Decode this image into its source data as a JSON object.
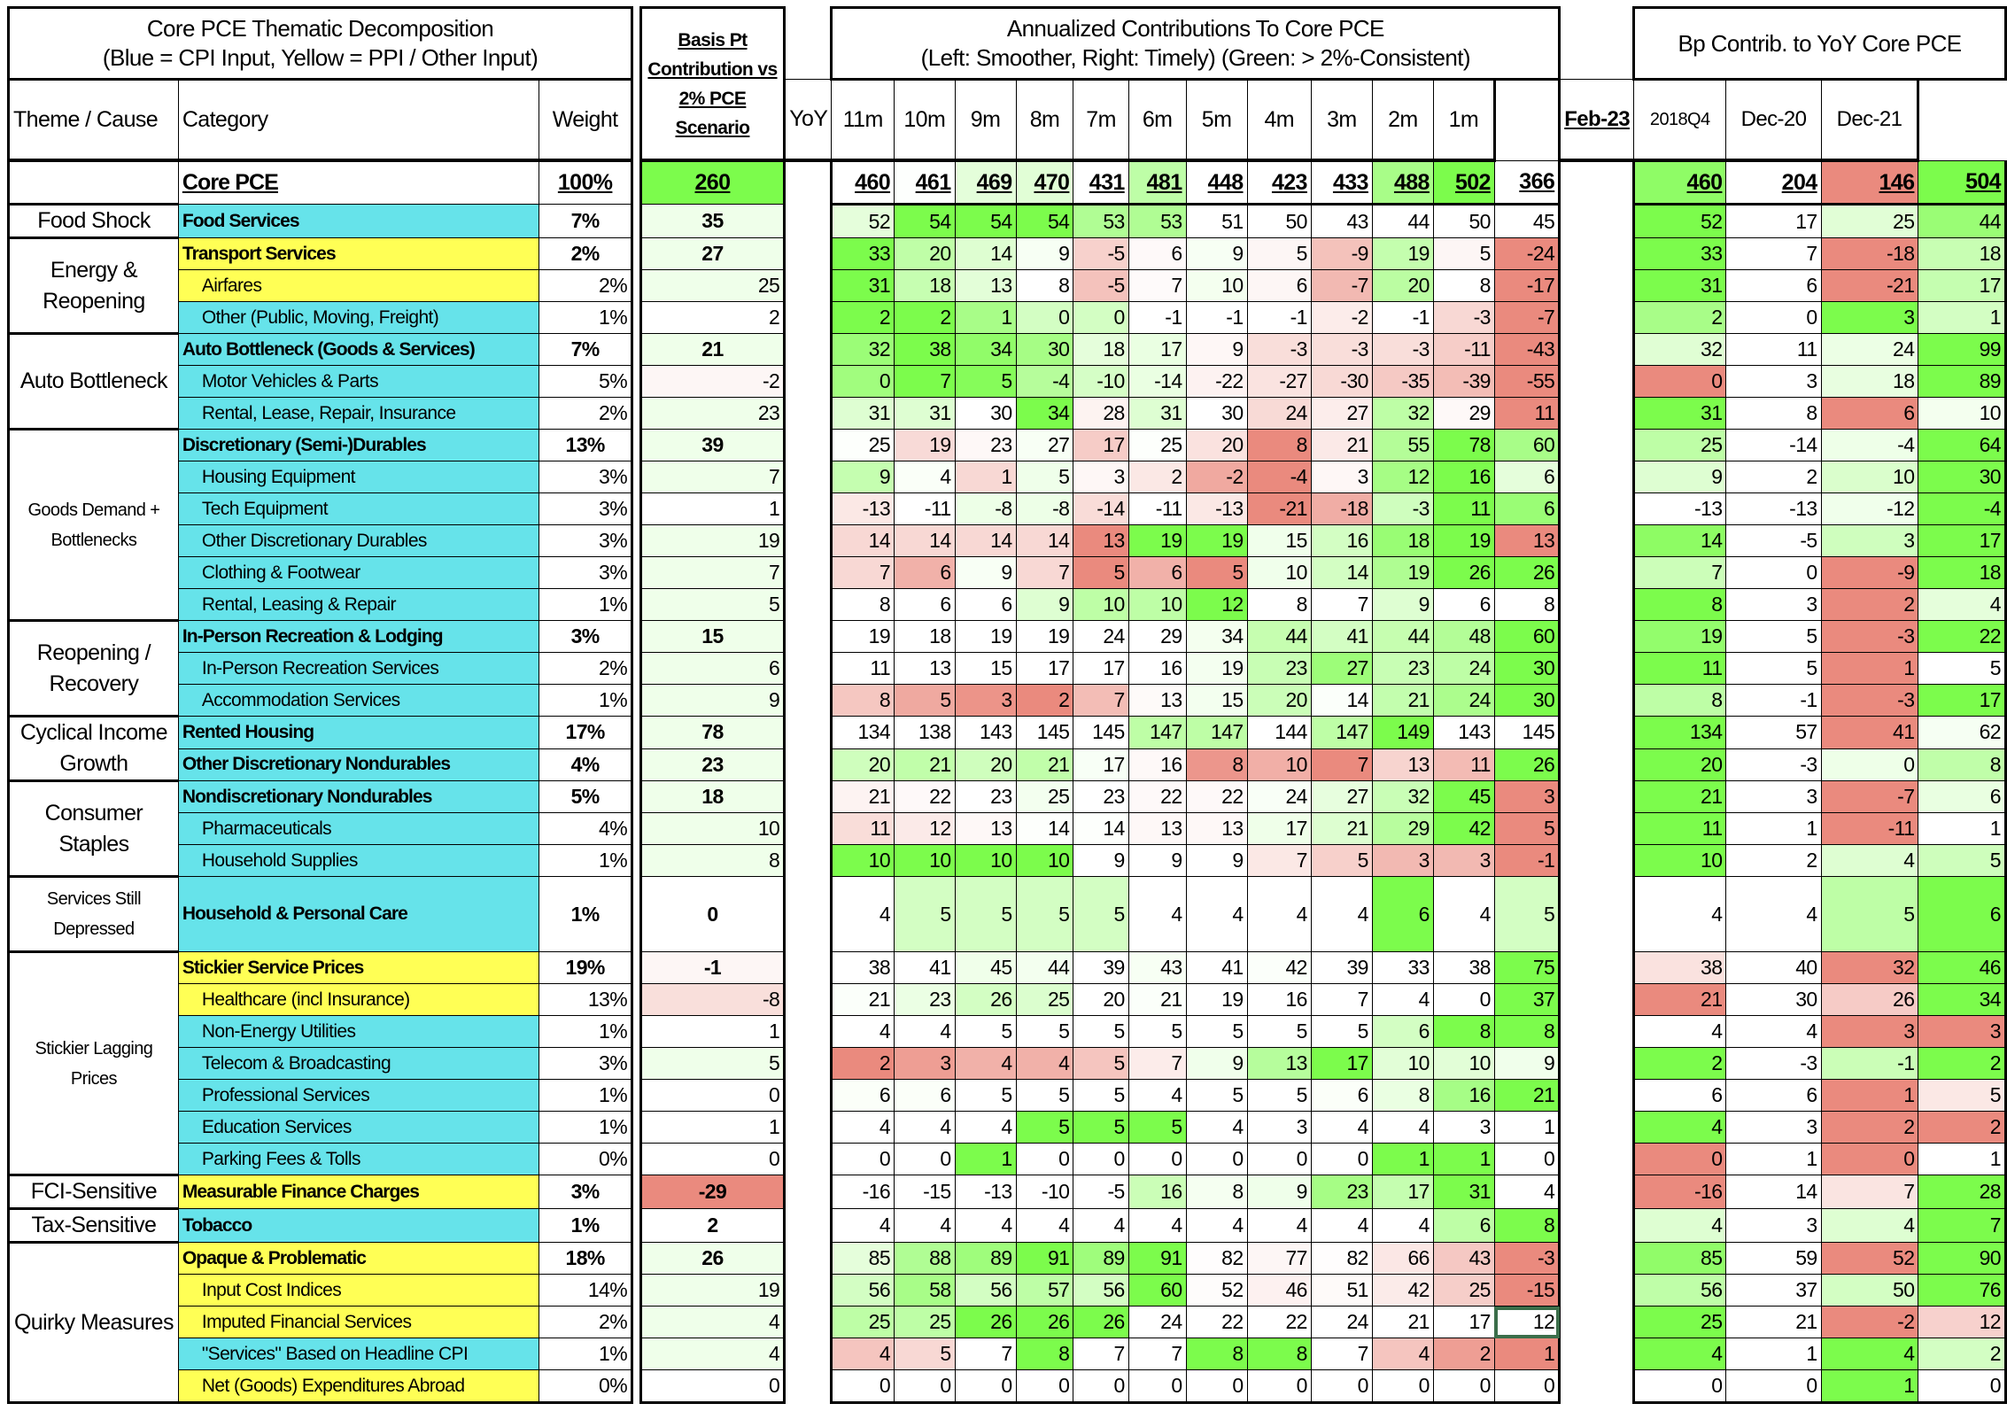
{
  "header": {
    "title_line1": "Core PCE Thematic  Decomposition",
    "title_line2": "(Blue = CPI Input, Yellow = PPI / Other Input)",
    "basis_title": "Basis Pt Contribution vs 2% PCE Scenario",
    "annual_title_line1": "Annualized Contributions To Core PCE",
    "annual_title_line2": "(Left: Smoother, Right: Timely) (Green: > 2%-Consistent)",
    "bp_title": "Bp Contrib. to YoY Core PCE",
    "theme_label": "Theme / Cause",
    "category_label": "Category",
    "weight_label": "Weight",
    "periods": [
      "YoY",
      "11m",
      "10m",
      "9m",
      "8m",
      "7m",
      "6m",
      "5m",
      "4m",
      "3m",
      "2m",
      "1m"
    ],
    "bp_periods": [
      "Feb-23",
      "2018Q4",
      "Dec-20",
      "Dec-21"
    ]
  },
  "colors": {
    "cpi_input": "#66E3EA",
    "ppi_other_input": "#FFFF55",
    "positive": "#7CFB4C",
    "negative": "#EA8A7E",
    "selected_cell_border": "#3B6E4A"
  },
  "core": {
    "name": "Core PCE",
    "weight": "100%",
    "basis": 260,
    "annual": [
      460,
      461,
      469,
      470,
      431,
      481,
      448,
      423,
      433,
      488,
      502,
      366
    ],
    "bp": [
      460,
      204,
      146,
      504
    ]
  },
  "themes": [
    {
      "label": "Food Shock",
      "rows": [
        {
          "name": "Food Services",
          "input": "cpi",
          "main": true,
          "weight": "7%",
          "basis": 35,
          "annual": [
            52,
            54,
            54,
            54,
            53,
            53,
            51,
            50,
            43,
            44,
            50,
            45
          ],
          "bp": [
            52,
            17,
            25,
            44
          ]
        }
      ]
    },
    {
      "label": "Energy & Reopening",
      "rows": [
        {
          "name": "Transport Services",
          "input": "ppi",
          "main": true,
          "weight": "2%",
          "basis": 27,
          "annual": [
            33,
            20,
            14,
            9,
            -5,
            6,
            9,
            5,
            -9,
            19,
            5,
            -24
          ],
          "bp": [
            33,
            7,
            -18,
            18
          ]
        },
        {
          "name": "Airfares",
          "input": "ppi",
          "main": false,
          "weight": "2%",
          "basis": 25,
          "annual": [
            31,
            18,
            13,
            8,
            -5,
            7,
            10,
            6,
            -7,
            20,
            8,
            -17
          ],
          "bp": [
            31,
            6,
            -21,
            17
          ]
        },
        {
          "name": "Other (Public, Moving, Freight)",
          "input": "cpi",
          "main": false,
          "weight": "1%",
          "basis": 2,
          "annual": [
            2,
            2,
            1,
            0,
            0,
            -1,
            -1,
            -1,
            -2,
            -1,
            -3,
            -7
          ],
          "bp": [
            2,
            0,
            3,
            1
          ]
        }
      ]
    },
    {
      "label": "Auto Bottleneck",
      "rows": [
        {
          "name": "Auto Bottleneck (Goods & Services)",
          "input": "cpi",
          "main": true,
          "weight": "7%",
          "basis": 21,
          "annual": [
            32,
            38,
            34,
            30,
            18,
            17,
            9,
            -3,
            -3,
            -3,
            -11,
            -43
          ],
          "bp": [
            32,
            11,
            24,
            99
          ]
        },
        {
          "name": "Motor Vehicles & Parts",
          "input": "cpi",
          "main": false,
          "weight": "5%",
          "basis": -2,
          "annual": [
            0,
            7,
            5,
            -4,
            -10,
            -14,
            -22,
            -27,
            -30,
            -35,
            -39,
            -55
          ],
          "bp": [
            0,
            3,
            18,
            89
          ]
        },
        {
          "name": "Rental, Lease, Repair, Insurance",
          "input": "cpi",
          "main": false,
          "weight": "2%",
          "basis": 23,
          "annual": [
            31,
            31,
            30,
            34,
            28,
            31,
            30,
            24,
            27,
            32,
            29,
            11
          ],
          "bp": [
            31,
            8,
            6,
            10
          ]
        }
      ]
    },
    {
      "label": "Goods Demand + Bottlenecks",
      "rows": [
        {
          "name": "Discretionary (Semi-)Durables",
          "input": "cpi",
          "main": true,
          "weight": "13%",
          "basis": 39,
          "annual": [
            25,
            19,
            23,
            27,
            17,
            25,
            20,
            8,
            21,
            55,
            78,
            60
          ],
          "bp": [
            25,
            -14,
            -4,
            64
          ]
        },
        {
          "name": "Housing Equipment",
          "input": "cpi",
          "main": false,
          "weight": "3%",
          "basis": 7,
          "annual": [
            9,
            4,
            1,
            5,
            3,
            2,
            -2,
            -4,
            3,
            12,
            16,
            6
          ],
          "bp": [
            9,
            2,
            10,
            30
          ]
        },
        {
          "name": "Tech Equipment",
          "input": "cpi",
          "main": false,
          "weight": "3%",
          "basis": 1,
          "annual": [
            -13,
            -11,
            -8,
            -8,
            -14,
            -11,
            -13,
            -21,
            -18,
            -3,
            11,
            6
          ],
          "bp": [
            -13,
            -13,
            -12,
            -4
          ]
        },
        {
          "name": "Other Discretionary Durables",
          "input": "cpi",
          "main": false,
          "weight": "3%",
          "basis": 19,
          "annual": [
            14,
            14,
            14,
            14,
            13,
            19,
            19,
            15,
            16,
            18,
            19,
            13
          ],
          "bp": [
            14,
            -5,
            3,
            17
          ]
        },
        {
          "name": "Clothing & Footwear",
          "input": "cpi",
          "main": false,
          "weight": "3%",
          "basis": 7,
          "annual": [
            7,
            6,
            9,
            7,
            5,
            6,
            5,
            10,
            14,
            19,
            26,
            26
          ],
          "bp": [
            7,
            0,
            -9,
            18
          ]
        },
        {
          "name": "Rental, Leasing & Repair",
          "input": "cpi",
          "main": false,
          "weight": "1%",
          "basis": 5,
          "annual": [
            8,
            6,
            6,
            9,
            10,
            10,
            12,
            8,
            7,
            9,
            6,
            8
          ],
          "bp": [
            8,
            3,
            2,
            4
          ]
        }
      ]
    },
    {
      "label": "Reopening / Recovery",
      "rows": [
        {
          "name": "In-Person Recreation & Lodging",
          "input": "cpi",
          "main": true,
          "weight": "3%",
          "basis": 15,
          "annual": [
            19,
            18,
            19,
            19,
            24,
            29,
            34,
            44,
            41,
            44,
            48,
            60
          ],
          "bp": [
            19,
            5,
            -3,
            22
          ]
        },
        {
          "name": "In-Person Recreation Services",
          "input": "cpi",
          "main": false,
          "weight": "2%",
          "basis": 6,
          "annual": [
            11,
            13,
            15,
            17,
            17,
            16,
            19,
            23,
            27,
            23,
            24,
            30
          ],
          "bp": [
            11,
            5,
            1,
            5
          ]
        },
        {
          "name": "Accommodation Services",
          "input": "cpi",
          "main": false,
          "weight": "1%",
          "basis": 9,
          "annual": [
            8,
            5,
            3,
            2,
            7,
            13,
            15,
            20,
            14,
            21,
            24,
            30
          ],
          "bp": [
            8,
            -1,
            -3,
            17
          ]
        }
      ]
    },
    {
      "label": "Cyclical Income Growth",
      "rows": [
        {
          "name": "Rented Housing",
          "input": "cpi",
          "main": true,
          "weight": "17%",
          "basis": 78,
          "annual": [
            134,
            138,
            143,
            145,
            145,
            147,
            147,
            144,
            147,
            149,
            143,
            145
          ],
          "bp": [
            134,
            57,
            41,
            62
          ]
        },
        {
          "name": "Other Discretionary Nondurables",
          "input": "cpi",
          "main": true,
          "weight": "4%",
          "basis": 23,
          "annual": [
            20,
            21,
            20,
            21,
            17,
            16,
            8,
            10,
            7,
            13,
            11,
            26
          ],
          "bp": [
            20,
            -3,
            0,
            8
          ]
        }
      ]
    },
    {
      "label": "Consumer Staples",
      "rows": [
        {
          "name": "Nondiscretionary Nondurables",
          "input": "cpi",
          "main": true,
          "weight": "5%",
          "basis": 18,
          "annual": [
            21,
            22,
            23,
            25,
            23,
            22,
            22,
            24,
            27,
            32,
            45,
            3
          ],
          "bp": [
            21,
            3,
            -7,
            6
          ]
        },
        {
          "name": "Pharmaceuticals",
          "input": "cpi",
          "main": false,
          "weight": "4%",
          "basis": 10,
          "annual": [
            11,
            12,
            13,
            14,
            14,
            13,
            13,
            17,
            21,
            29,
            42,
            5
          ],
          "bp": [
            11,
            1,
            -11,
            1
          ]
        },
        {
          "name": "Household Supplies",
          "input": "cpi",
          "main": false,
          "weight": "1%",
          "basis": 8,
          "annual": [
            10,
            10,
            10,
            10,
            9,
            9,
            9,
            7,
            5,
            3,
            3,
            -1
          ],
          "bp": [
            10,
            2,
            4,
            5
          ]
        }
      ]
    },
    {
      "label": "Services Still Depressed",
      "rows": [
        {
          "name": "Household & Personal Care",
          "input": "cpi",
          "main": true,
          "weight": "1%",
          "basis": 0,
          "annual": [
            4,
            5,
            5,
            5,
            5,
            4,
            4,
            4,
            4,
            6,
            4,
            5
          ],
          "bp": [
            4,
            4,
            5,
            6
          ]
        }
      ]
    },
    {
      "label": "Stickier Lagging Prices",
      "rows": [
        {
          "name": "Stickier Service Prices",
          "input": "ppi",
          "main": true,
          "weight": "19%",
          "basis": -1,
          "annual": [
            38,
            41,
            45,
            44,
            39,
            43,
            41,
            42,
            39,
            33,
            38,
            75
          ],
          "bp": [
            38,
            40,
            32,
            46
          ]
        },
        {
          "name": "Healthcare (incl Insurance)",
          "input": "ppi",
          "main": false,
          "weight": "13%",
          "basis": -8,
          "annual": [
            21,
            23,
            26,
            25,
            20,
            21,
            19,
            16,
            7,
            4,
            0,
            37
          ],
          "bp": [
            21,
            30,
            26,
            34
          ]
        },
        {
          "name": "Non-Energy Utilities",
          "input": "cpi",
          "main": false,
          "weight": "1%",
          "basis": 1,
          "annual": [
            4,
            4,
            5,
            5,
            5,
            5,
            5,
            5,
            5,
            6,
            8,
            8
          ],
          "bp": [
            4,
            4,
            3,
            3
          ]
        },
        {
          "name": "Telecom & Broadcasting",
          "input": "cpi",
          "main": false,
          "weight": "3%",
          "basis": 5,
          "annual": [
            2,
            3,
            4,
            4,
            5,
            7,
            9,
            13,
            17,
            10,
            10,
            9
          ],
          "bp": [
            2,
            -3,
            -1,
            2
          ]
        },
        {
          "name": "Professional Services",
          "input": "cpi",
          "main": false,
          "weight": "1%",
          "basis": 0,
          "annual": [
            6,
            6,
            5,
            5,
            5,
            4,
            5,
            5,
            6,
            8,
            16,
            21
          ],
          "bp": [
            6,
            6,
            1,
            5
          ]
        },
        {
          "name": "Education Services",
          "input": "cpi",
          "main": false,
          "weight": "1%",
          "basis": 1,
          "annual": [
            4,
            4,
            4,
            5,
            5,
            5,
            4,
            3,
            4,
            4,
            3,
            1
          ],
          "bp": [
            4,
            3,
            2,
            2
          ]
        },
        {
          "name": "Parking Fees & Tolls",
          "input": "cpi",
          "main": false,
          "weight": "0%",
          "basis": 0,
          "annual": [
            0,
            0,
            1,
            0,
            0,
            0,
            0,
            0,
            0,
            1,
            1,
            0
          ],
          "bp": [
            0,
            1,
            0,
            1
          ]
        }
      ]
    },
    {
      "label": "FCI-Sensitive",
      "rows": [
        {
          "name": "Measurable Finance Charges",
          "input": "ppi",
          "main": true,
          "weight": "3%",
          "basis": -29,
          "annual": [
            -16,
            -15,
            -13,
            -10,
            -5,
            16,
            8,
            9,
            23,
            17,
            31,
            4
          ],
          "bp": [
            -16,
            14,
            7,
            28
          ]
        }
      ]
    },
    {
      "label": "Tax-Sensitive",
      "rows": [
        {
          "name": "Tobacco",
          "input": "cpi",
          "main": true,
          "weight": "1%",
          "basis": 2,
          "annual": [
            4,
            4,
            4,
            4,
            4,
            4,
            4,
            4,
            4,
            4,
            6,
            8
          ],
          "bp": [
            4,
            3,
            4,
            7
          ]
        }
      ]
    },
    {
      "label": "Quirky Measures",
      "rows": [
        {
          "name": "Opaque & Problematic",
          "input": "ppi",
          "main": true,
          "weight": "18%",
          "basis": 26,
          "annual": [
            85,
            88,
            89,
            91,
            89,
            91,
            82,
            77,
            82,
            66,
            43,
            -3
          ],
          "bp": [
            85,
            59,
            52,
            90
          ]
        },
        {
          "name": "Input Cost Indices",
          "input": "ppi",
          "main": false,
          "weight": "14%",
          "basis": 19,
          "annual": [
            56,
            58,
            56,
            57,
            56,
            60,
            52,
            46,
            51,
            42,
            25,
            -15
          ],
          "bp": [
            56,
            37,
            50,
            76
          ]
        },
        {
          "name": "Imputed Financial Services",
          "input": "ppi",
          "main": false,
          "weight": "2%",
          "basis": 4,
          "annual": [
            25,
            25,
            26,
            26,
            26,
            24,
            22,
            22,
            24,
            21,
            17,
            12
          ],
          "bp": [
            25,
            21,
            -2,
            12
          ]
        },
        {
          "name": "\"Services\" Based on Headline CPI",
          "input": "cpi",
          "main": false,
          "weight": "1%",
          "basis": 4,
          "annual": [
            4,
            5,
            7,
            8,
            7,
            7,
            8,
            8,
            7,
            4,
            2,
            1
          ],
          "bp": [
            4,
            1,
            4,
            2
          ]
        },
        {
          "name": "Net (Goods) Expenditures Abroad",
          "input": "ppi",
          "main": false,
          "weight": "0%",
          "basis": 0,
          "annual": [
            0,
            0,
            0,
            0,
            0,
            0,
            0,
            0,
            0,
            0,
            0,
            0
          ],
          "bp": [
            0,
            0,
            1,
            0
          ]
        }
      ]
    }
  ]
}
